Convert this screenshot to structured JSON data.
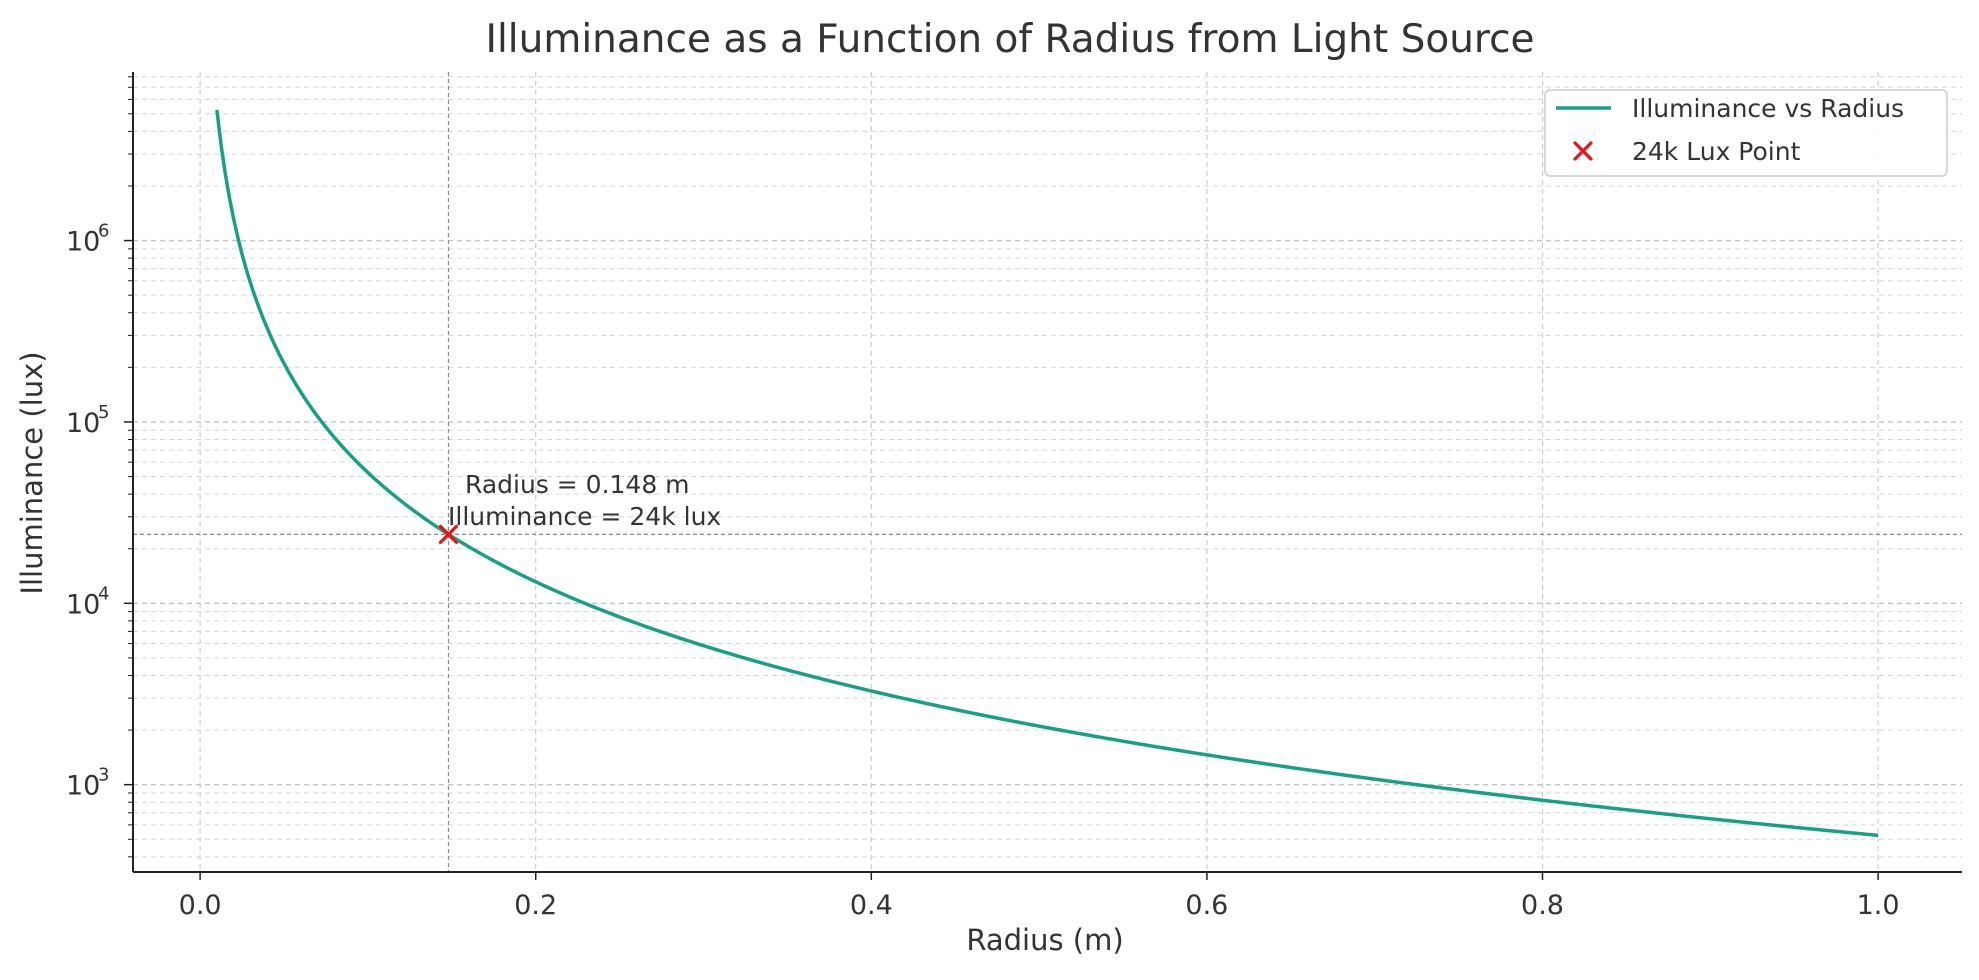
{
  "chart_data": {
    "type": "line",
    "title": "Illuminance as a Function of Radius from Light Source",
    "xlabel": "Radius (m)",
    "ylabel": "Illuminance (lux)",
    "xlim": [
      -0.04,
      1.05
    ],
    "ylim": [
      330,
      8500000
    ],
    "yscale": "log",
    "grid": true,
    "legend_position": "top-right",
    "x_ticks": [
      0.0,
      0.2,
      0.4,
      0.6,
      0.8,
      1.0
    ],
    "x_tick_labels": [
      "0.0",
      "0.2",
      "0.4",
      "0.6",
      "0.8",
      "1.0"
    ],
    "y_ticks": [
      1000,
      10000,
      100000,
      1000000
    ],
    "y_tick_labels": [
      "10",
      "10",
      "10",
      "10"
    ],
    "y_tick_exponents": [
      "3",
      "4",
      "5",
      "6"
    ],
    "series": [
      {
        "name": "Illuminance vs Radius",
        "color": "#16a085",
        "x_range": [
          0.01,
          1.0
        ],
        "formula": "y = 525.5 / x^2",
        "coefficient": 525.5
      }
    ],
    "marker": {
      "name": "24k Lux Point",
      "color": "#ee1111",
      "symbol": "x",
      "x": 0.148,
      "y": 24000
    },
    "reference_lines": {
      "x": 0.148,
      "y": 24000
    },
    "annotation": {
      "line1": "Radius = 0.148 m",
      "line2": "Illuminance = 24k lux"
    }
  }
}
